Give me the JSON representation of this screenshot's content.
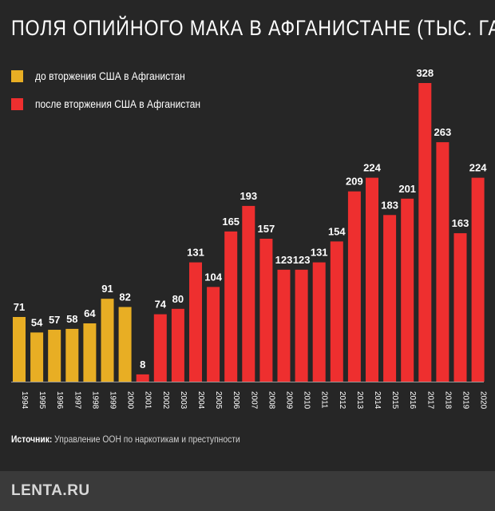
{
  "title": "ПОЛЯ ОПИЙНОГО МАКА В АФГАНИСТАНЕ (ТЫС. ГА)",
  "legend": {
    "before": "до вторжения США в Афганистан",
    "after": "после вторжения США в Афганистан"
  },
  "colors": {
    "before": "#e8ae24",
    "after": "#ee2f2f",
    "background": "#262626",
    "footer": "#3a3a3a"
  },
  "source": {
    "label": "Источник:",
    "text": " Управление ООН по наркотикам и преступности"
  },
  "logo": "LENTA.RU",
  "chart_data": {
    "type": "bar",
    "title": "ПОЛЯ ОПИЙНОГО МАКА В АФГАНИСТАНЕ (ТЫС. ГА)",
    "categories": [
      "1994",
      "1995",
      "1996",
      "1997",
      "1998",
      "1999",
      "2000",
      "2001",
      "2002",
      "2003",
      "2004",
      "2005",
      "2006",
      "2007",
      "2008",
      "2009",
      "2010",
      "2011",
      "2012",
      "2013",
      "2014",
      "2015",
      "2016",
      "2017",
      "2018",
      "2019",
      "2020"
    ],
    "values": [
      71,
      54,
      57,
      58,
      64,
      91,
      82,
      8,
      74,
      80,
      131,
      104,
      165,
      193,
      157,
      123,
      123,
      131,
      154,
      209,
      224,
      183,
      201,
      328,
      263,
      163,
      224
    ],
    "groups": [
      "before",
      "before",
      "before",
      "before",
      "before",
      "before",
      "before",
      "after",
      "after",
      "after",
      "after",
      "after",
      "after",
      "after",
      "after",
      "after",
      "after",
      "after",
      "after",
      "after",
      "after",
      "after",
      "after",
      "after",
      "after",
      "after",
      "after"
    ],
    "xlabel": "",
    "ylabel": "",
    "ylim": [
      0,
      328
    ],
    "grid": false,
    "legend_position": "top-left"
  }
}
